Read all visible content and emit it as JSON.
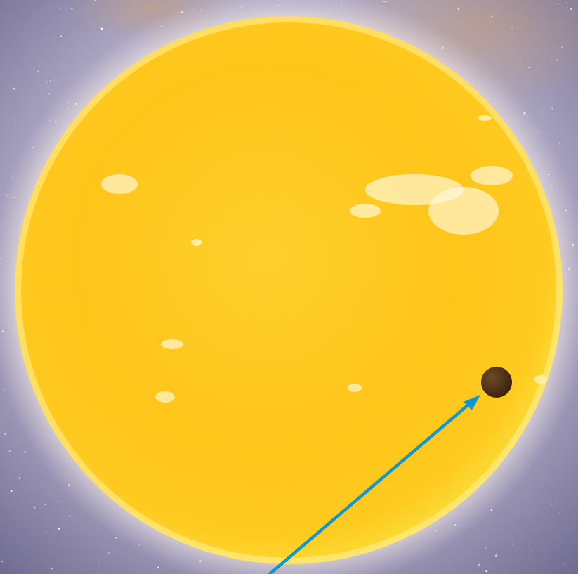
{
  "scene": {
    "subject": "sun-with-planet-transit",
    "colors": {
      "space_inner": "#d8cfe0",
      "space_outer": "#6e6a90",
      "nebula_warm": "#c9a07a",
      "sun_core": "#ffe23a",
      "sun_mid": "#ffc515",
      "sun_edge": "#f7a20c",
      "sun_glow": "#fff3c0",
      "facula": "#fffbe0",
      "planet": "#4a2e14",
      "planet_highlight": "#6e4a26",
      "arrow": "#1596c9"
    },
    "planet": {
      "label_present": false
    },
    "arrow": {
      "icon": "pointer-arrow"
    }
  }
}
